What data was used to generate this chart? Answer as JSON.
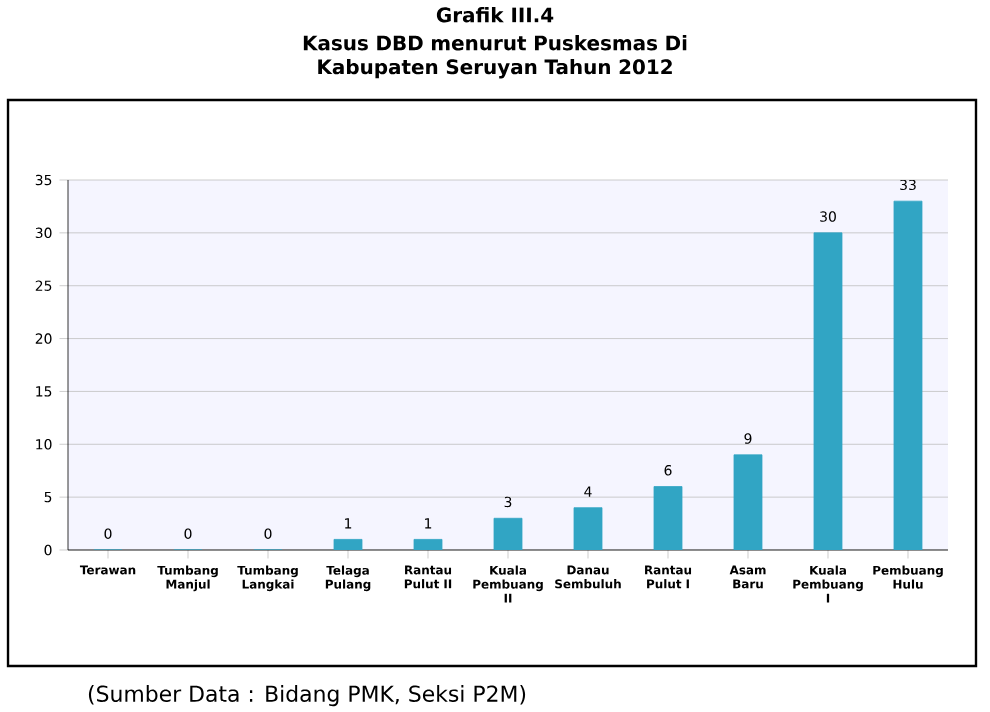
{
  "chart_data": {
    "type": "bar",
    "title": "Grafik III.4",
    "subtitle": "Kasus DBD menurut Puskesmas Di Kabupaten Seruyan Tahun 2012",
    "categories": [
      "Terawan",
      "Tumbang Manjul",
      "Tumbang Langkai",
      "Telaga Pulang",
      "Rantau Pulut II",
      "Kuala Pembuang II",
      "Danau Sembuluh",
      "Rantau Pulut I",
      "Asam Baru",
      "Kuala Pembuang I",
      "Pembuang Hulu"
    ],
    "values": [
      0,
      0,
      0,
      1,
      1,
      3,
      4,
      6,
      9,
      30,
      33
    ],
    "color": "#31a5c4",
    "ylim": [
      0,
      35
    ],
    "yticks": [
      0,
      5,
      10,
      15,
      20,
      25,
      30,
      35
    ],
    "grid": "y",
    "data_labels": true,
    "annotations": [
      "(Sumber Data : Bidang PMK, Seksi P2M)"
    ]
  }
}
